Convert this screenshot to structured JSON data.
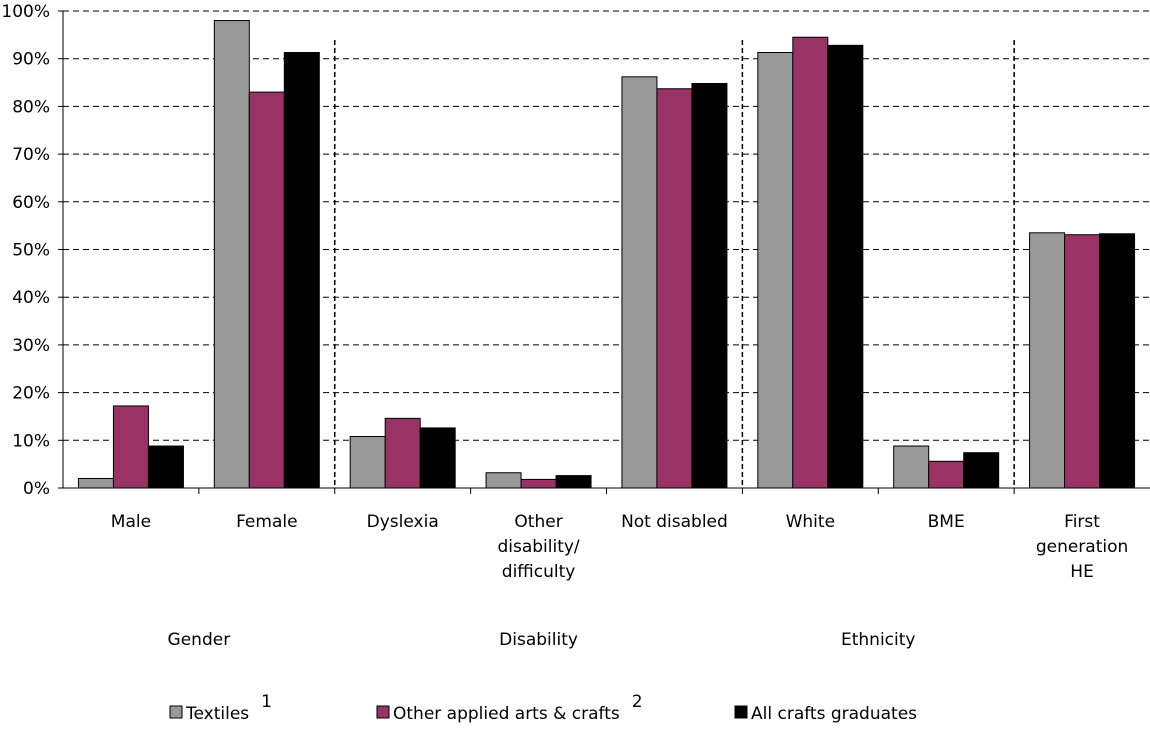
{
  "chart_data": {
    "type": "bar",
    "categories": [
      [
        "Male"
      ],
      [
        "Female"
      ],
      [
        "Dyslexia"
      ],
      [
        "Other",
        "disability/",
        "difficulty"
      ],
      [
        "Not disabled"
      ],
      [
        "White"
      ],
      [
        "BME"
      ],
      [
        "First",
        "generation",
        "HE"
      ]
    ],
    "groups": [
      {
        "label": "Gender",
        "from": 0,
        "to": 1
      },
      {
        "label": "Disability",
        "from": 2,
        "to": 4
      },
      {
        "label": "Ethnicity",
        "from": 5,
        "to": 6
      }
    ],
    "separators_after": [
      1,
      4,
      6
    ],
    "series": [
      {
        "name": "Textiles",
        "sup": "1",
        "color": "#999999",
        "values": [
          2,
          98,
          10.8,
          3.2,
          86.2,
          91.3,
          8.8,
          53.5
        ]
      },
      {
        "name": "Other applied arts & crafts",
        "sup": "2",
        "color": "#993366",
        "values": [
          17.2,
          83,
          14.6,
          1.8,
          83.7,
          94.5,
          5.6,
          53.1
        ]
      },
      {
        "name": "All crafts graduates",
        "sup": "",
        "color": "#000000",
        "values": [
          8.8,
          91.3,
          12.6,
          2.6,
          84.8,
          92.8,
          7.4,
          53.3
        ]
      }
    ],
    "ylim": [
      0,
      100
    ],
    "yticks": [
      "0%",
      "10%",
      "20%",
      "30%",
      "40%",
      "50%",
      "60%",
      "70%",
      "80%",
      "90%",
      "100%"
    ],
    "grid": true,
    "grid_style": "dashed",
    "legend_position": "bottom"
  }
}
